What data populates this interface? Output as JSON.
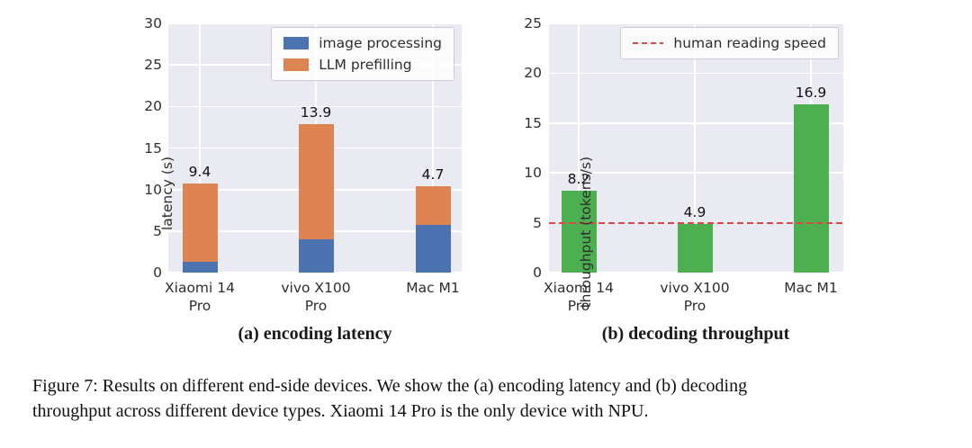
{
  "colors": {
    "plot_bg": "#EAEAF2",
    "grid": "#FFFFFF",
    "blue": "#4C72B0",
    "orange": "#DD8452",
    "green": "#4CAF50",
    "red_dashed": "#E04545",
    "text": "#262626"
  },
  "chart_data": [
    {
      "type": "bar",
      "stacked": true,
      "title": "(a) encoding latency",
      "ylabel": "latency (s)",
      "xlabel": "",
      "ylim": [
        0,
        30
      ],
      "yticks": [
        0,
        5,
        10,
        15,
        20,
        25,
        30
      ],
      "grid": true,
      "legend_position": "upper right",
      "categories": [
        "Xiaomi 14\nPro",
        "vivo X100\nPro",
        "Mac M1"
      ],
      "series": [
        {
          "name": "image processing",
          "color": "#4C72B0",
          "values": [
            1.3,
            4.0,
            5.7
          ]
        },
        {
          "name": "LLM prefilling",
          "color": "#DD8452",
          "values": [
            9.4,
            13.9,
            4.7
          ]
        }
      ]
    },
    {
      "type": "bar",
      "stacked": false,
      "title": "(b) decoding throughput",
      "ylabel": "throughput (tokens/s)",
      "xlabel": "",
      "ylim": [
        0,
        25
      ],
      "yticks": [
        0,
        5,
        10,
        15,
        20,
        25
      ],
      "grid": true,
      "legend_position": "upper right",
      "categories": [
        "Xiaomi 14\nPro",
        "vivo X100\nPro",
        "Mac M1"
      ],
      "series": [
        {
          "color": "#4CAF50",
          "values": [
            8.2,
            4.9,
            16.9
          ]
        }
      ],
      "reference_line": {
        "label": "human reading speed",
        "value": 5,
        "color": "#E04545",
        "style": "dashed"
      }
    }
  ],
  "caption": {
    "line1": "Figure 7: Results on different end-side devices. We show the (a) encoding latency and (b) decoding",
    "line2": "throughput across different device types. Xiaomi 14 Pro is the only device with NPU."
  }
}
